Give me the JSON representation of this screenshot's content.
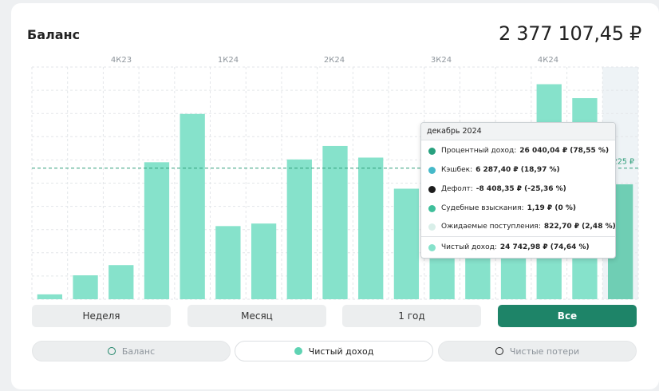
{
  "header": {
    "title": "Баланс",
    "balance": "2 377 107,45 ₽"
  },
  "colors": {
    "accent": "#1e8468",
    "bar": "#86e2cb",
    "bar_highlight": "#6fceb4",
    "ref_line": "#2e9e7a"
  },
  "chart_data": {
    "type": "bar",
    "quarter_labels": [
      "4К23",
      "1К24",
      "2К24",
      "3К24",
      "4К24"
    ],
    "values": [
      1050,
      5150,
      7350,
      29500,
      39900,
      15750,
      16300,
      30100,
      33000,
      30500,
      23800,
      16600,
      18400,
      25100,
      46300,
      43300,
      24743
    ],
    "ymax": 50000,
    "reference": {
      "value": 28225,
      "label": "28 225 ₽"
    },
    "highlighted_index": 16
  },
  "tooltip": {
    "title": "декабрь 2024",
    "rows": [
      {
        "label": "Процентный доход:",
        "value": "26 040,04 ₽ (78,55 %)",
        "color": "#27a07e"
      },
      {
        "label": "Кэшбек:",
        "value": "6 287,40 ₽ (18,97 %)",
        "color": "#46b9c9"
      },
      {
        "label": "Дефолт:",
        "value": "-8 408,35 ₽ (-25,36 %)",
        "color": "#1c1c1c"
      },
      {
        "label": "Судебные взыскания:",
        "value": "1,19 ₽ (0 %)",
        "color": "#3fbf9b"
      },
      {
        "label": "Ожидаемые поступления:",
        "value": "822,70 ₽ (2,48 %)",
        "color": "#d9efe9"
      },
      {
        "label": "Чистый доход:",
        "value": "24 742,98 ₽ (74,64 %)",
        "color": "#86e2cb"
      }
    ]
  },
  "periods": [
    {
      "label": "Неделя",
      "active": false
    },
    {
      "label": "Месяц",
      "active": false
    },
    {
      "label": "1 год",
      "active": false
    },
    {
      "label": "Все",
      "active": true
    }
  ],
  "series": [
    {
      "label": "Баланс",
      "active": false
    },
    {
      "label": "Чистый доход",
      "active": true
    },
    {
      "label": "Чистые потери",
      "active": false
    }
  ]
}
